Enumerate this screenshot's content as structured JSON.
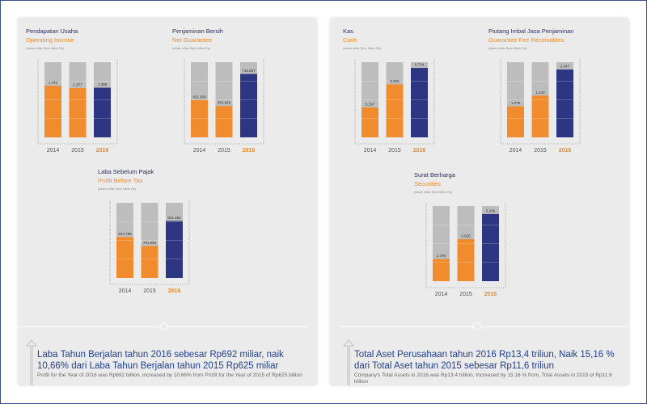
{
  "colors": {
    "old": "#f08c2e",
    "current": "#2c3682",
    "track": "#bdbdbd",
    "headline": "#1f3f8f"
  },
  "left": {
    "caption": {
      "headline": "Laba Tahun Berjalan tahun 2016 sebesar Rp692 miliar, naik 10,66% dari Laba Tahun Berjalan tahun 2015 Rp625 miliar",
      "body": "Profit for the Year of 2016 was Rp692 billion, increased by 10.66% from Profit for the Year of 2015 of Rp625 billion"
    }
  },
  "right": {
    "caption": {
      "headline": "Total Aset Perusahaan tahun 2016 Rp13,4 triliun, Naik 15,16 % dari Total Aset tahun 2015 sebesar Rp11,6 triliun",
      "body": "Company's Total Assets in 2016 was Rp13.4 trillion, Increased by 15.16 % from, Total Assets in 2015 of Rp11.6 trillion"
    }
  },
  "chart_data": [
    {
      "type": "bar",
      "title": "Pendapatan Usaha",
      "subtitle": "Operating Income",
      "unit": "(dalam miliar Rp/in billion Rp)",
      "categories": [
        "2014",
        "2015",
        "2016"
      ],
      "values": [
        1442,
        1377,
        1388
      ],
      "labels": [
        "1.442",
        "1.377",
        "1.388"
      ],
      "ylim": [
        0,
        2100
      ]
    },
    {
      "type": "bar",
      "title": "Penjaminan Bersih",
      "subtitle": "Net Guarantee",
      "unit": "(dalam miliar Rp/in billion Rp)",
      "categories": [
        "2014",
        "2015",
        "2016"
      ],
      "values": [
        421.5,
        354.825,
        716.857
      ],
      "labels": [
        "421.500",
        "354.825",
        "716.857"
      ],
      "ylim": [
        0,
        850
      ]
    },
    {
      "type": "bar",
      "title": "Laba Sebelum Pajak",
      "subtitle": "Profit Before Tax",
      "unit": "(dalam miliar Rp/in billion Rp)",
      "categories": [
        "2014",
        "2015",
        "2016"
      ],
      "values": [
        844.788,
        791.053,
        941.454
      ],
      "labels": [
        "844.788",
        "791.053",
        "941.454"
      ],
      "ylim": [
        600,
        1050
      ]
    },
    {
      "type": "bar",
      "title": "Kas",
      "subtitle": "Cash",
      "unit": "(dalam miliar Rp/in billion Rp)",
      "categories": [
        "2014",
        "2015",
        "2016"
      ],
      "values": [
        5197,
        5505,
        5724
      ],
      "labels": [
        "5.197",
        "5.505",
        "5.724"
      ],
      "ylim": [
        4800,
        5800
      ]
    },
    {
      "type": "bar",
      "title": "Piutang Imbal Jasa Penjaminan",
      "subtitle": "Guarantee Fee Receivables",
      "unit": "(dalam miliar Rp/in billion Rp)",
      "categories": [
        "2014",
        "2015",
        "2016"
      ],
      "values": [
        1075,
        1443,
        2347
      ],
      "labels": [
        "1.075",
        "1.443",
        "2.347"
      ],
      "ylim": [
        0,
        2600
      ]
    },
    {
      "type": "bar",
      "title": "Surat Berharga",
      "subtitle": "Securities",
      "unit": "(dalam miliar Rp/in billion Rp)",
      "categories": [
        "2014",
        "2015",
        "2016"
      ],
      "values": [
        2700,
        2925,
        3209
      ],
      "labels": [
        "2.700",
        "2.925",
        "3.209"
      ],
      "ylim": [
        2450,
        3300
      ]
    }
  ]
}
